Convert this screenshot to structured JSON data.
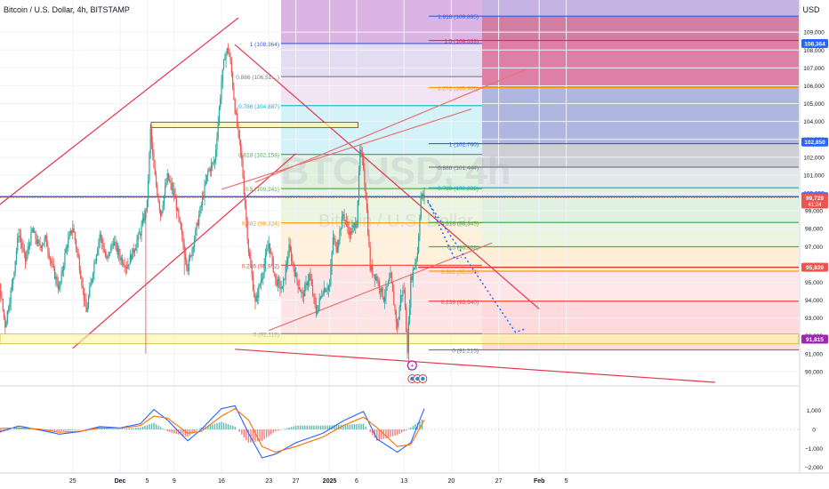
{
  "header": {
    "symbol_title": "Bitcoin / U.S. Dollar, 4h, BITSTAMP",
    "currency": "USD"
  },
  "watermark": {
    "ticker": "BTCUSD, 4h",
    "name": "Bitcoin / U.S. Dollar"
  },
  "colors": {
    "up": "#26a69a",
    "down": "#ef5350",
    "channel": "#e8334a",
    "blue_line": "#3b5bdb",
    "macd": "#2962ff",
    "signal": "#ff6d00"
  },
  "chart_data": [
    {
      "type": "candlestick",
      "title": "Bitcoin / U.S. Dollar, 4h, BITSTAMP",
      "y_axis": {
        "unit": "USD",
        "range": [
          89200,
          110800
        ],
        "ticks": [
          90000,
          91000,
          92000,
          93000,
          94000,
          95000,
          96000,
          97000,
          98000,
          99000,
          100000,
          101000,
          102000,
          103000,
          104000,
          105000,
          106000,
          107000,
          108000,
          109000
        ],
        "tick_labels": [
          "90,000",
          "91,000",
          "92,000",
          "93,000",
          "94,000",
          "95,000",
          "96,000",
          "97,000",
          "98,000",
          "99,000",
          "100,000",
          "101,000",
          "102,000",
          "103,000",
          "104,000",
          "105,000",
          "106,000",
          "107,000",
          "108,000",
          "109,000"
        ]
      },
      "x_axis": {
        "ticks": [
          "25",
          "Dec",
          "5",
          "9",
          "16",
          "23",
          "27",
          "2025",
          "6",
          "13",
          "20",
          "27",
          "Feb",
          "5"
        ],
        "ticks_at_day": [
          -7,
          0,
          4,
          8,
          15,
          22,
          26,
          31,
          35,
          42,
          49,
          56,
          62,
          66
        ]
      },
      "price_path": [
        [
          -24,
          94000
        ],
        [
          -23,
          95600
        ],
        [
          -22,
          97600
        ],
        [
          -21,
          98900
        ],
        [
          -20,
          98200
        ],
        [
          -19,
          96500
        ],
        [
          -18,
          95200
        ],
        [
          -17,
          92600
        ],
        [
          -16,
          94800
        ],
        [
          -15,
          97800
        ],
        [
          -14,
          96200
        ],
        [
          -13,
          97900
        ],
        [
          -12,
          97000
        ],
        [
          -11,
          97400
        ],
        [
          -10,
          95800
        ],
        [
          -9,
          94600
        ],
        [
          -8,
          96900
        ],
        [
          -7,
          98100
        ],
        [
          -6,
          95900
        ],
        [
          -5,
          93300
        ],
        [
          -4,
          95700
        ],
        [
          -3,
          97700
        ],
        [
          -2,
          96200
        ],
        [
          -1,
          97300
        ],
        [
          0,
          96400
        ],
        [
          1,
          95900
        ],
        [
          2,
          96800
        ],
        [
          3,
          97800
        ],
        [
          4,
          99400
        ],
        [
          4.5,
          103500
        ],
        [
          5,
          101300
        ],
        [
          6,
          98800
        ],
        [
          7,
          100900
        ],
        [
          8,
          99900
        ],
        [
          9,
          97800
        ],
        [
          10,
          95800
        ],
        [
          11,
          97500
        ],
        [
          12,
          99300
        ],
        [
          13,
          101200
        ],
        [
          14,
          101800
        ],
        [
          15,
          106200
        ],
        [
          15.5,
          107700
        ],
        [
          16,
          108100
        ],
        [
          16.5,
          106700
        ],
        [
          17,
          104700
        ],
        [
          18,
          101800
        ],
        [
          19,
          96800
        ],
        [
          20,
          93800
        ],
        [
          21,
          95400
        ],
        [
          22,
          97200
        ],
        [
          23,
          95100
        ],
        [
          24,
          94600
        ],
        [
          25,
          96900
        ],
        [
          26,
          95300
        ],
        [
          27,
          94200
        ],
        [
          28,
          95400
        ],
        [
          29,
          93300
        ],
        [
          30,
          94600
        ],
        [
          31,
          94800
        ],
        [
          31.5,
          97500
        ],
        [
          32,
          96900
        ],
        [
          33,
          98800
        ],
        [
          34,
          97700
        ],
        [
          35,
          98400
        ],
        [
          35.5,
          102300
        ],
        [
          36,
          101500
        ],
        [
          36.5,
          99000
        ],
        [
          37,
          95800
        ],
        [
          38,
          95200
        ],
        [
          39,
          94100
        ],
        [
          40,
          95300
        ],
        [
          41,
          92400
        ],
        [
          41.5,
          94200
        ],
        [
          42,
          94600
        ],
        [
          42.5,
          91300
        ],
        [
          43,
          95100
        ],
        [
          44,
          96700
        ],
        [
          44.5,
          99800
        ],
        [
          45,
          99729
        ]
      ],
      "current_price": 99729,
      "price_labels": [
        {
          "price": 108364,
          "label": "108,364",
          "color": "#2962ff"
        },
        {
          "price": 102850,
          "label": "102,850",
          "color": "#2962ff"
        },
        {
          "price": 99790,
          "label": "99,790",
          "color": "#2962ff"
        },
        {
          "price": 99729,
          "label": "99,729",
          "sub": "41:24",
          "color": "#ef5350"
        },
        {
          "price": 95839,
          "label": "95,839",
          "color": "#ef5350"
        },
        {
          "price": 91815,
          "label": "91,815",
          "color": "#9c27b0"
        }
      ],
      "fib_left": {
        "levels": [
          {
            "ratio": "1",
            "price": 108364,
            "label": "1 (108,364)",
            "color": "#3b5bdb"
          },
          {
            "ratio": "0.886",
            "price": 106510,
            "label": "0.886 (106,51…)",
            "color": "#787b86"
          },
          {
            "ratio": "0.786",
            "price": 104887,
            "label": "0.786 (104,887)",
            "color": "#00bcd4"
          },
          {
            "ratio": "0.618",
            "price": 102158,
            "label": "0.618 (102,158)",
            "color": "#4caf50"
          },
          {
            "ratio": "0.5",
            "price": 100241,
            "label": "0.5 (100,241)",
            "color": "#4caf50"
          },
          {
            "ratio": "0.382",
            "price": 98324,
            "label": "0.382 (98,324)",
            "color": "#ff9800"
          },
          {
            "ratio": "0.236",
            "price": 95952,
            "label": "0.236 (95,952)",
            "color": "#f44336"
          },
          {
            "ratio": "0",
            "price": 92118,
            "label": "0 (92,118)",
            "color": "#787b86"
          }
        ]
      },
      "fib_right": {
        "levels": [
          {
            "ratio": "1.618",
            "price": 109895,
            "label": "1.618 (109,895)",
            "color": "#3b5bdb"
          },
          {
            "ratio": "1.5",
            "price": 108533,
            "label": "1.5 (108,533)",
            "color": "#e91e63"
          },
          {
            "ratio": "1.272",
            "price": 105900,
            "label": "1.272 (105,900)",
            "color": "#ff9800"
          },
          {
            "ratio": "1",
            "price": 102760,
            "label": "1 (102,760)",
            "color": "#3b5bdb"
          },
          {
            "ratio": "0.886",
            "price": 101444,
            "label": "0.886 (101,444)",
            "color": "#787b86"
          },
          {
            "ratio": "0.786",
            "price": 100288,
            "label": "0.786 (100,288)",
            "color": "#00bcd4"
          },
          {
            "ratio": "0.618",
            "price": 98345,
            "label": "0.618 (98,345)",
            "color": "#4caf50"
          },
          {
            "ratio": "0.5",
            "price": 96988,
            "label": "0.5 (96,988)",
            "color": "#4caf50"
          },
          {
            "ratio": "0.382",
            "price": 95620,
            "label": "0.382 (95,620)",
            "color": "#ff9800"
          },
          {
            "ratio": "0.236",
            "price": 93940,
            "label": "0.236 (93,940)",
            "color": "#f44336"
          },
          {
            "ratio": "0",
            "price": 91215,
            "label": "0 (91,215)",
            "color": "#787b86"
          }
        ]
      }
    },
    {
      "type": "line",
      "title": "MACD",
      "y_axis": {
        "range": [
          -2300,
          2300
        ],
        "ticks": [
          1000,
          0,
          -1000,
          -2000
        ],
        "tick_labels": [
          "1,000",
          "0",
          "−1,000",
          "−2,000"
        ]
      },
      "series": [
        {
          "color": "#2962ff",
          "points": [
            [
              -24,
              -200
            ],
            [
              -21,
              450
            ],
            [
              -18,
              -150
            ],
            [
              -15,
              180
            ],
            [
              -12,
              -20
            ],
            [
              -9,
              -250
            ],
            [
              -6,
              -120
            ],
            [
              -3,
              150
            ],
            [
              0,
              80
            ],
            [
              3,
              300
            ],
            [
              5,
              1050
            ],
            [
              7,
              500
            ],
            [
              10,
              -600
            ],
            [
              12,
              0
            ],
            [
              15,
              1100
            ],
            [
              17,
              1250
            ],
            [
              19,
              -200
            ],
            [
              21,
              -1500
            ],
            [
              23,
              -1300
            ],
            [
              26,
              -700
            ],
            [
              30,
              -200
            ],
            [
              33,
              450
            ],
            [
              36,
              950
            ],
            [
              38,
              -500
            ],
            [
              41,
              -1200
            ],
            [
              43,
              -700
            ],
            [
              45,
              1100
            ]
          ]
        },
        {
          "color": "#ff6d00",
          "points": [
            [
              -24,
              -150
            ],
            [
              -21,
              250
            ],
            [
              -18,
              50
            ],
            [
              -15,
              80
            ],
            [
              -12,
              20
            ],
            [
              -9,
              -150
            ],
            [
              -6,
              -100
            ],
            [
              -3,
              80
            ],
            [
              0,
              60
            ],
            [
              3,
              200
            ],
            [
              5,
              700
            ],
            [
              7,
              600
            ],
            [
              10,
              -200
            ],
            [
              12,
              -100
            ],
            [
              15,
              700
            ],
            [
              17,
              1100
            ],
            [
              19,
              500
            ],
            [
              21,
              -900
            ],
            [
              23,
              -1200
            ],
            [
              26,
              -900
            ],
            [
              30,
              -400
            ],
            [
              33,
              200
            ],
            [
              36,
              650
            ],
            [
              38,
              100
            ],
            [
              41,
              -900
            ],
            [
              43,
              -800
            ],
            [
              45,
              500
            ]
          ]
        }
      ]
    }
  ]
}
